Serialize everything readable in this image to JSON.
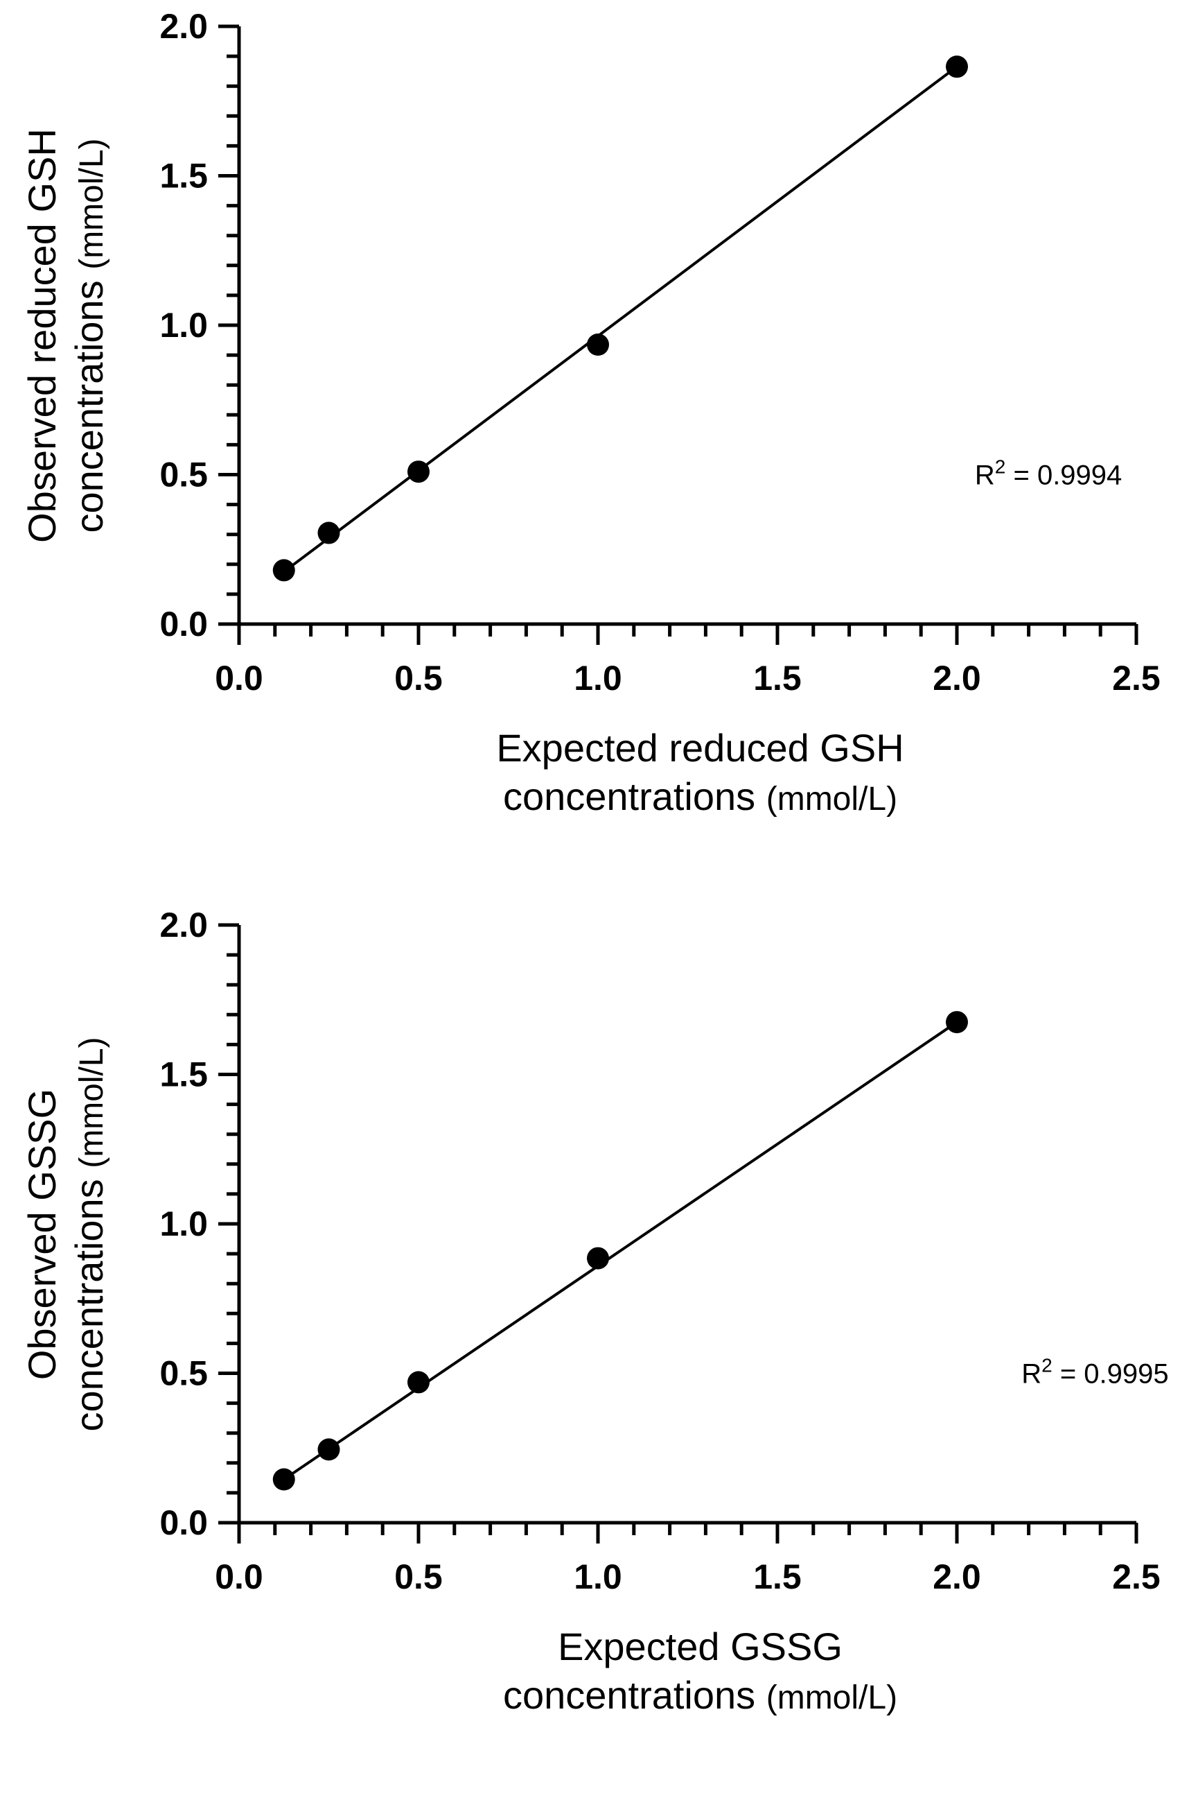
{
  "chart_data": [
    {
      "type": "scatter",
      "title": "",
      "xlabel": "Expected reduced GSH concentrations (mmol/L)",
      "xlabel_lines": [
        "Expected reduced GSH",
        "concentrations"
      ],
      "ylabel": "Observed reduced GSH concentrations (mmol/L)",
      "ylabel_lines": [
        "Observed reduced GSH",
        "concentrations"
      ],
      "unit": "(mmol/L)",
      "xlim": [
        0,
        2.5
      ],
      "ylim": [
        0,
        2.0
      ],
      "xticks": [
        0.0,
        0.5,
        1.0,
        1.5,
        2.0,
        2.5
      ],
      "xtick_labels": [
        "0.0",
        "0.5",
        "1.0",
        "1.5",
        "2.0",
        "2.5"
      ],
      "yticks": [
        0.0,
        0.5,
        1.0,
        1.5,
        2.0
      ],
      "ytick_labels": [
        "0.0",
        "0.5",
        "1.0",
        "1.5",
        "2.0"
      ],
      "grid": false,
      "series": [
        {
          "name": "GSH",
          "x": [
            0.125,
            0.25,
            0.5,
            1.0,
            2.0
          ],
          "y": [
            0.18,
            0.305,
            0.51,
            0.935,
            1.865
          ]
        }
      ],
      "fit_line": {
        "x": [
          0.125,
          2.0
        ],
        "y": [
          0.175,
          1.865
        ]
      },
      "annotation": {
        "prefix": "R",
        "sup": "2",
        "suffix": " = 0.9994",
        "x": 2.05,
        "y": 0.5
      }
    },
    {
      "type": "scatter",
      "title": "",
      "xlabel": "Expected GSSG concentrations (mmol/L)",
      "xlabel_lines": [
        "Expected GSSG",
        "concentrations"
      ],
      "ylabel": "Observed GSSG concentrations (mmol/L)",
      "ylabel_lines": [
        "Observed GSSG",
        "concentrations"
      ],
      "unit": "(mmol/L)",
      "xlim": [
        0,
        2.5
      ],
      "ylim": [
        0,
        2.0
      ],
      "xticks": [
        0.0,
        0.5,
        1.0,
        1.5,
        2.0,
        2.5
      ],
      "xtick_labels": [
        "0.0",
        "0.5",
        "1.0",
        "1.5",
        "2.0",
        "2.5"
      ],
      "yticks": [
        0.0,
        0.5,
        1.0,
        1.5,
        2.0
      ],
      "ytick_labels": [
        "0.0",
        "0.5",
        "1.0",
        "1.5",
        "2.0"
      ],
      "grid": false,
      "series": [
        {
          "name": "GSSG",
          "x": [
            0.125,
            0.25,
            0.5,
            1.0,
            2.0
          ],
          "y": [
            0.145,
            0.245,
            0.47,
            0.885,
            1.675
          ]
        }
      ],
      "fit_line": {
        "x": [
          0.125,
          2.0
        ],
        "y": [
          0.145,
          1.675
        ]
      },
      "annotation": {
        "prefix": "R",
        "sup": "2",
        "suffix": " = 0.9995",
        "x": 2.18,
        "y": 0.5
      }
    }
  ]
}
